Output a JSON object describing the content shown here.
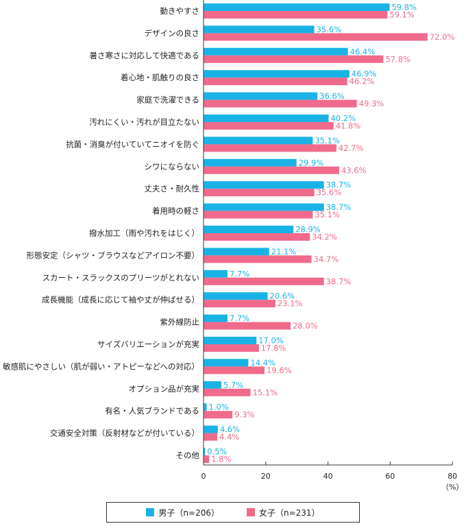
{
  "colors": {
    "male": "#1bb3e6",
    "female": "#f06a8c"
  },
  "legend": [
    {
      "label": "男子（n=206）",
      "color": "#1bb3e6"
    },
    {
      "label": "女子（n=231）",
      "color": "#f06a8c"
    }
  ],
  "chart_data": {
    "type": "bar",
    "orientation": "horizontal",
    "xunit": "（%）",
    "xlim": [
      0,
      80
    ],
    "xticks": [
      "0",
      "20",
      "40",
      "60",
      "80"
    ],
    "grid": false,
    "legend_position": "bottom",
    "categories": [
      "動きやすさ",
      "デザインの良さ",
      "暑さ寒さに対応して快適である",
      "着心地・肌触りの良さ",
      "家庭で洗濯できる",
      "汚れにくい・汚れが目立たない",
      "抗菌・消臭が付いていてニオイを防ぐ",
      "シワにならない",
      "丈夫さ・耐久性",
      "着用時の軽さ",
      "撥水加工（雨や汚れをはじく）",
      "形態安定（シャツ・ブラウスなどアイロン不要）",
      "スカート・スラックスのプリーツがとれない",
      "成長機能（成長に応じて袖や丈が伸ばせる）",
      "紫外線防止",
      "サイズバリエーションが充実",
      "敏感肌にやさしい（肌が弱い・アトピーなどへの対応）",
      "オプション品が充実",
      "有名・人気ブランドである",
      "交通安全対策（反射材などが付いている）",
      "その他"
    ],
    "series": [
      {
        "name": "男子（n=206）",
        "values": [
          59.8,
          35.6,
          46.4,
          46.9,
          36.6,
          40.2,
          35.1,
          29.9,
          38.7,
          38.7,
          28.9,
          21.1,
          7.7,
          20.6,
          7.7,
          17.0,
          14.4,
          5.7,
          1.0,
          4.6,
          0.5
        ],
        "labels": [
          "59.8%",
          "35.6%",
          "46.4%",
          "46.9%",
          "36.6%",
          "40.2%",
          "35.1%",
          "29.9%",
          "38.7%",
          "38.7%",
          "28.9%",
          "21.1%",
          "7.7%",
          "20.6%",
          "7.7%",
          "17.0%",
          "14.4%",
          "5.7%",
          "1.0%",
          "4.6%",
          "0.5%"
        ]
      },
      {
        "name": "女子（n=231）",
        "values": [
          59.1,
          72.0,
          57.8,
          46.2,
          49.3,
          41.8,
          42.7,
          43.6,
          35.6,
          35.1,
          34.2,
          34.7,
          38.7,
          23.1,
          28.0,
          17.8,
          19.6,
          15.1,
          9.3,
          4.4,
          1.8
        ],
        "labels": [
          "59.1%",
          "72.0%",
          "57.8%",
          "46.2%",
          "49.3%",
          "41.8%",
          "42.7%",
          "43.6%",
          "35.6%",
          "35.1%",
          "34.2%",
          "34.7%",
          "38.7%",
          "23.1%",
          "28.0%",
          "17.8%",
          "19.6%",
          "15.1%",
          "9.3%",
          "4.4%",
          "1.8%"
        ]
      }
    ]
  }
}
